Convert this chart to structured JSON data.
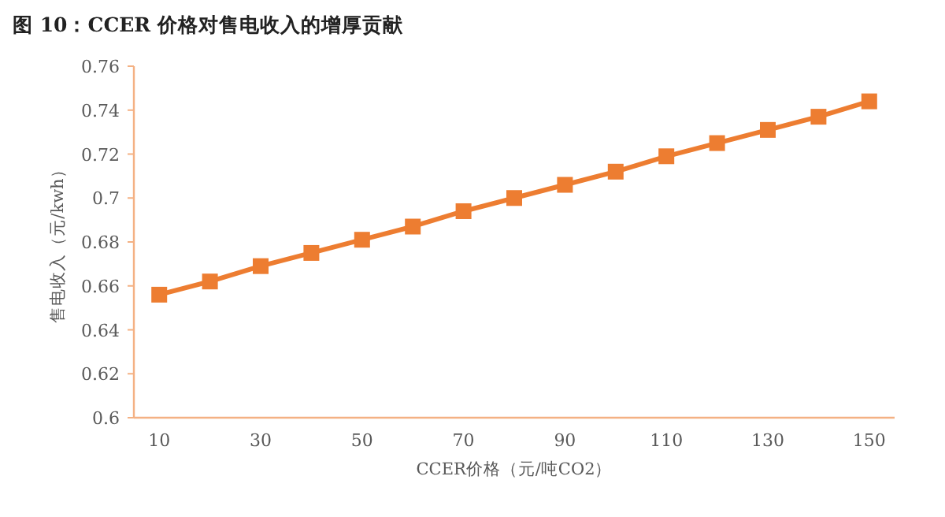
{
  "chart_data": {
    "type": "line",
    "title": "图 10：CCER 价格对售电收入的增厚贡献",
    "xlabel": "CCER价格（元/吨CO2）",
    "ylabel": "售电收入（元/kwh）",
    "categories": [
      "10",
      null,
      "30",
      null,
      "50",
      null,
      "70",
      null,
      "90",
      null,
      "110",
      null,
      "130",
      null,
      "150"
    ],
    "series": [
      {
        "color": "#ed7d31",
        "values": [
          0.656,
          0.662,
          0.669,
          0.675,
          0.681,
          0.687,
          0.694,
          0.7,
          0.706,
          0.712,
          0.719,
          0.725,
          0.731,
          0.737,
          0.744
        ]
      }
    ],
    "ylim": [
      0.6,
      0.76
    ],
    "yticks": [
      0.6,
      0.62,
      0.64,
      0.66,
      0.68,
      0.7,
      0.72,
      0.74,
      0.76
    ],
    "marker": "square",
    "grid": false
  }
}
